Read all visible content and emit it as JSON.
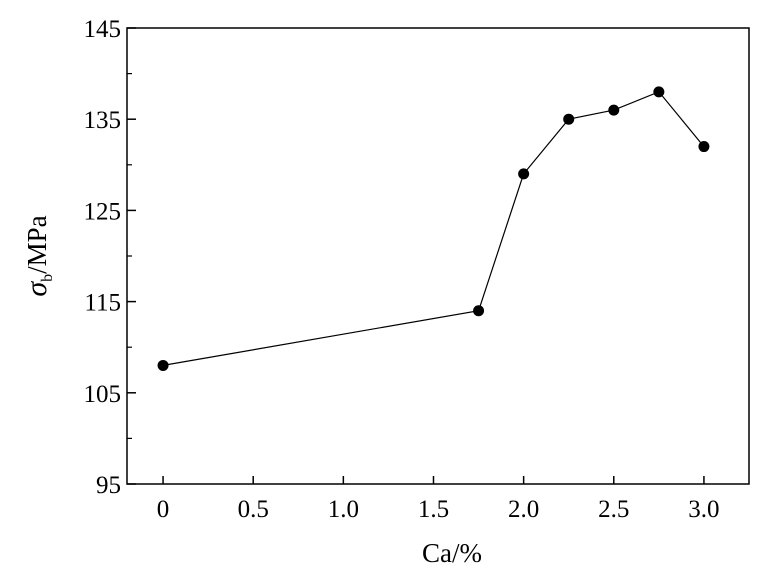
{
  "chart_data": {
    "type": "line",
    "x": [
      0,
      1.75,
      2.0,
      2.25,
      2.5,
      2.75,
      3.0
    ],
    "series": [
      {
        "values": [
          108,
          114,
          129,
          135,
          136,
          138,
          132
        ]
      }
    ],
    "title": "",
    "xlabel": "Ca/%",
    "ylabel_symbol": "σ",
    "ylabel_subscript": "b",
    "ylabel_unit": "/MPa",
    "xlim": [
      -0.2,
      3.25
    ],
    "ylim": [
      95,
      145
    ],
    "xticks": [
      0,
      0.5,
      1.0,
      1.5,
      2.0,
      2.5,
      3.0
    ],
    "xtick_labels": [
      "0",
      "0.5",
      "1.0",
      "1.5",
      "2.0",
      "2.5",
      "3.0"
    ],
    "yticks": [
      95,
      105,
      115,
      125,
      135,
      145
    ],
    "ytick_labels": [
      "95",
      "105",
      "115",
      "125",
      "135",
      "145"
    ],
    "yminor_ticks": [
      100,
      110,
      120,
      130,
      140
    ],
    "grid": false,
    "legend": "none",
    "line_color": "#000000",
    "marker_color": "#000000"
  }
}
